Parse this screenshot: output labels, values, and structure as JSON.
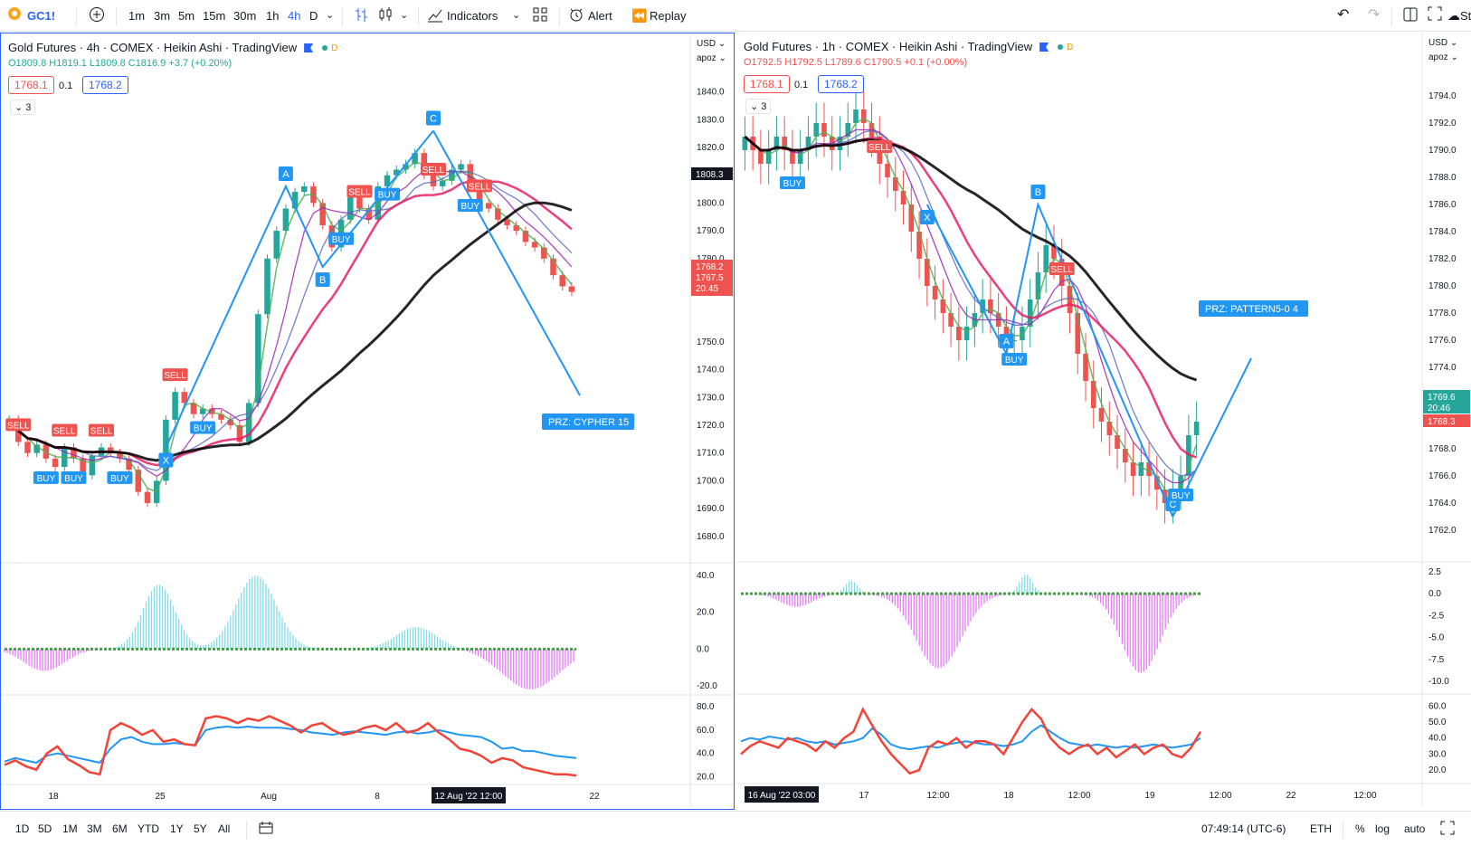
{
  "toolbar": {
    "symbol": "GC1!",
    "intervals": [
      "1m",
      "3m",
      "5m",
      "15m",
      "30m",
      "1h",
      "4h",
      "D"
    ],
    "active_interval": "4h",
    "indicators_label": "Indicators",
    "alert_label": "Alert",
    "replay_label": "Replay",
    "right_cut_label": "Sta"
  },
  "left_chart": {
    "title": "Gold Futures · 4h · COMEX · Heikin Ashi · TradingView",
    "ohlc": {
      "o": "O1809.8",
      "h": "H1819.1",
      "l": "L1809.8",
      "c": "C1816.9",
      "chg": "+3.7 (+0.20%)"
    },
    "sell_price": "1768.1",
    "spread": "0.1",
    "buy_price": "1768.2",
    "collapse_count": "3",
    "currency": "USD",
    "scale_mode": "apoz",
    "crosshair_price": "1808.3",
    "last_price_top": "1768.2",
    "last_price_mid": "1767.5",
    "countdown": "20:45",
    "crosshair_time": "12 Aug '22   12:00",
    "prz_label": "PRZ: CYPHER 15"
  },
  "right_chart": {
    "title": "Gold Futures · 1h · COMEX · Heikin Ashi · TradingView",
    "ohlc": {
      "o": "O1792.5",
      "h": "H1792.5",
      "l": "L1789.6",
      "c": "C1790.5",
      "chg": "+0.1 (+0.00%)"
    },
    "sell_price": "1768.1",
    "spread": "0.1",
    "buy_price": "1768.2",
    "collapse_count": "3",
    "currency": "USD",
    "scale_mode": "apoz",
    "last_price": "1769.6",
    "countdown": "20:46",
    "bid_price": "1768.3",
    "crosshair_time": "16 Aug '22   03:00",
    "prz_label": "PRZ: PATTERN5-0 4"
  },
  "chart_data": [
    {
      "type": "candlestick",
      "title": "Gold Futures · 4h · COMEX · Heikin Ashi · TradingView",
      "price_ticks": [
        "1840.0",
        "1830.0",
        "1820.0",
        "1810.0",
        "1800.0",
        "1790.0",
        "1780.0",
        "1770.0",
        "1750.0",
        "1740.0",
        "1730.0",
        "1720.0",
        "1710.0",
        "1700.0",
        "1690.0",
        "1680.0"
      ],
      "x_ticks": [
        "18",
        "25",
        "Aug",
        "8",
        "22"
      ],
      "ylim": [
        1677,
        1848
      ],
      "ha_close": [
        1722,
        1714,
        1710,
        1713,
        1708,
        1705,
        1712,
        1708,
        1702,
        1709,
        1712,
        1710,
        1708,
        1704,
        1696,
        1692,
        1700,
        1722,
        1732,
        1728,
        1724,
        1726,
        1724,
        1722,
        1720,
        1714,
        1728,
        1760,
        1780,
        1790,
        1798,
        1804,
        1806,
        1800,
        1792,
        1784,
        1794,
        1802,
        1798,
        1794,
        1806,
        1810,
        1812,
        1814,
        1818,
        1810,
        1806,
        1808,
        1812,
        1814,
        1806,
        1800,
        1798,
        1794,
        1792,
        1790,
        1786,
        1784,
        1780,
        1774,
        1770,
        1768
      ],
      "patterns": [
        {
          "points": [
            [
              "X",
              1712
            ],
            [
              "A",
              1806
            ],
            [
              "B",
              1777
            ],
            [
              "C",
              1826
            ]
          ],
          "color": "#2196f3"
        }
      ],
      "wave_labels": [
        "a",
        "b",
        "c"
      ],
      "signals_buy": 8,
      "signals_sell": 8,
      "osc1": {
        "ticks": [
          "40.0",
          "20.0",
          "0.0",
          "-20.0"
        ],
        "ylim": [
          -22,
          44
        ]
      },
      "osc2": {
        "ticks": [
          "80.0",
          "60.0",
          "40.0",
          "20.0"
        ],
        "ylim": [
          18,
          84
        ],
        "blue": [
          33,
          36,
          34,
          32,
          38,
          40,
          38,
          36,
          34,
          32,
          44,
          52,
          54,
          50,
          48,
          48,
          49,
          48,
          47,
          60,
          62,
          63,
          62,
          63,
          62,
          62,
          62,
          61,
          60,
          58,
          57,
          56,
          58,
          59,
          58,
          57,
          56,
          58,
          59,
          57,
          58,
          60,
          58,
          56,
          55,
          54,
          50,
          44,
          45,
          42,
          42,
          40,
          38,
          37,
          36
        ],
        "red": [
          30,
          34,
          29,
          26,
          40,
          46,
          35,
          30,
          24,
          22,
          60,
          66,
          62,
          56,
          60,
          50,
          52,
          48,
          47,
          70,
          72,
          70,
          66,
          70,
          68,
          72,
          68,
          64,
          58,
          64,
          66,
          60,
          56,
          58,
          62,
          64,
          60,
          66,
          58,
          60,
          66,
          58,
          52,
          44,
          42,
          38,
          32,
          36,
          34,
          28,
          26,
          24,
          22,
          22,
          21
        ]
      }
    },
    {
      "type": "candlestick",
      "title": "Gold Futures · 1h · COMEX · Heikin Ashi · TradingView",
      "price_ticks": [
        "1794.0",
        "1792.0",
        "1790.0",
        "1788.0",
        "1786.0",
        "1784.0",
        "1782.0",
        "1780.0",
        "1778.0",
        "1776.0",
        "1774.0",
        "1772.0",
        "1770.0",
        "1768.0",
        "1766.0",
        "1764.0",
        "1762.0"
      ],
      "x_ticks": [
        "17",
        "12:00",
        "18",
        "12:00",
        "19",
        "12:00",
        "22",
        "12:00"
      ],
      "ylim": [
        1761,
        1796
      ],
      "ha_close": [
        1791,
        1790,
        1789,
        1790,
        1791,
        1790,
        1789,
        1790,
        1791,
        1792,
        1791,
        1790,
        1791,
        1792,
        1793,
        1792,
        1791,
        1789,
        1788,
        1787,
        1786,
        1784,
        1782,
        1780,
        1779,
        1778,
        1777,
        1776,
        1777,
        1778,
        1779,
        1778,
        1777,
        1776,
        1776,
        1777,
        1779,
        1781,
        1783,
        1782,
        1780,
        1778,
        1775,
        1773,
        1771,
        1770,
        1769,
        1768,
        1767,
        1766,
        1767,
        1766,
        1765,
        1764,
        1765,
        1766,
        1769,
        1770
      ],
      "patterns": [
        {
          "points": [
            [
              "X",
              1786
            ],
            [
              "A",
              1775
            ],
            [
              "B",
              1786
            ],
            [
              "C",
              1763
            ]
          ],
          "color": "#2196f3"
        }
      ],
      "osc1": {
        "ticks": [
          "2.5",
          "0.0",
          "-2.5",
          "-5.0",
          "-7.5",
          "-10.0"
        ],
        "ylim": [
          -10.8,
          3
        ]
      },
      "osc2": {
        "ticks": [
          "60.0",
          "50.0",
          "40.0",
          "30.0",
          "20.0"
        ],
        "ylim": [
          15,
          63
        ],
        "blue": [
          38,
          40,
          39,
          41,
          40,
          39,
          40,
          38,
          37,
          38,
          36,
          37,
          38,
          40,
          46,
          42,
          36,
          34,
          33,
          34,
          35,
          34,
          36,
          37,
          38,
          37,
          36,
          36,
          35,
          36,
          38,
          44,
          48,
          44,
          40,
          37,
          36,
          35,
          36,
          35,
          34,
          35,
          34,
          35,
          36,
          35,
          34,
          35,
          36,
          40
        ],
        "red": [
          30,
          35,
          38,
          36,
          34,
          40,
          38,
          36,
          32,
          38,
          34,
          40,
          44,
          58,
          48,
          38,
          30,
          24,
          18,
          20,
          34,
          38,
          36,
          40,
          34,
          38,
          38,
          36,
          30,
          40,
          50,
          58,
          52,
          40,
          34,
          30,
          34,
          36,
          30,
          34,
          28,
          32,
          36,
          30,
          34,
          36,
          30,
          28,
          34,
          44
        ]
      }
    }
  ],
  "bottombar": {
    "ranges": [
      "1D",
      "5D",
      "1M",
      "3M",
      "6M",
      "YTD",
      "1Y",
      "5Y",
      "All"
    ],
    "clock": "07:49:14 (UTC-6)",
    "session": "ETH",
    "percent": "%",
    "log": "log",
    "auto": "auto"
  }
}
